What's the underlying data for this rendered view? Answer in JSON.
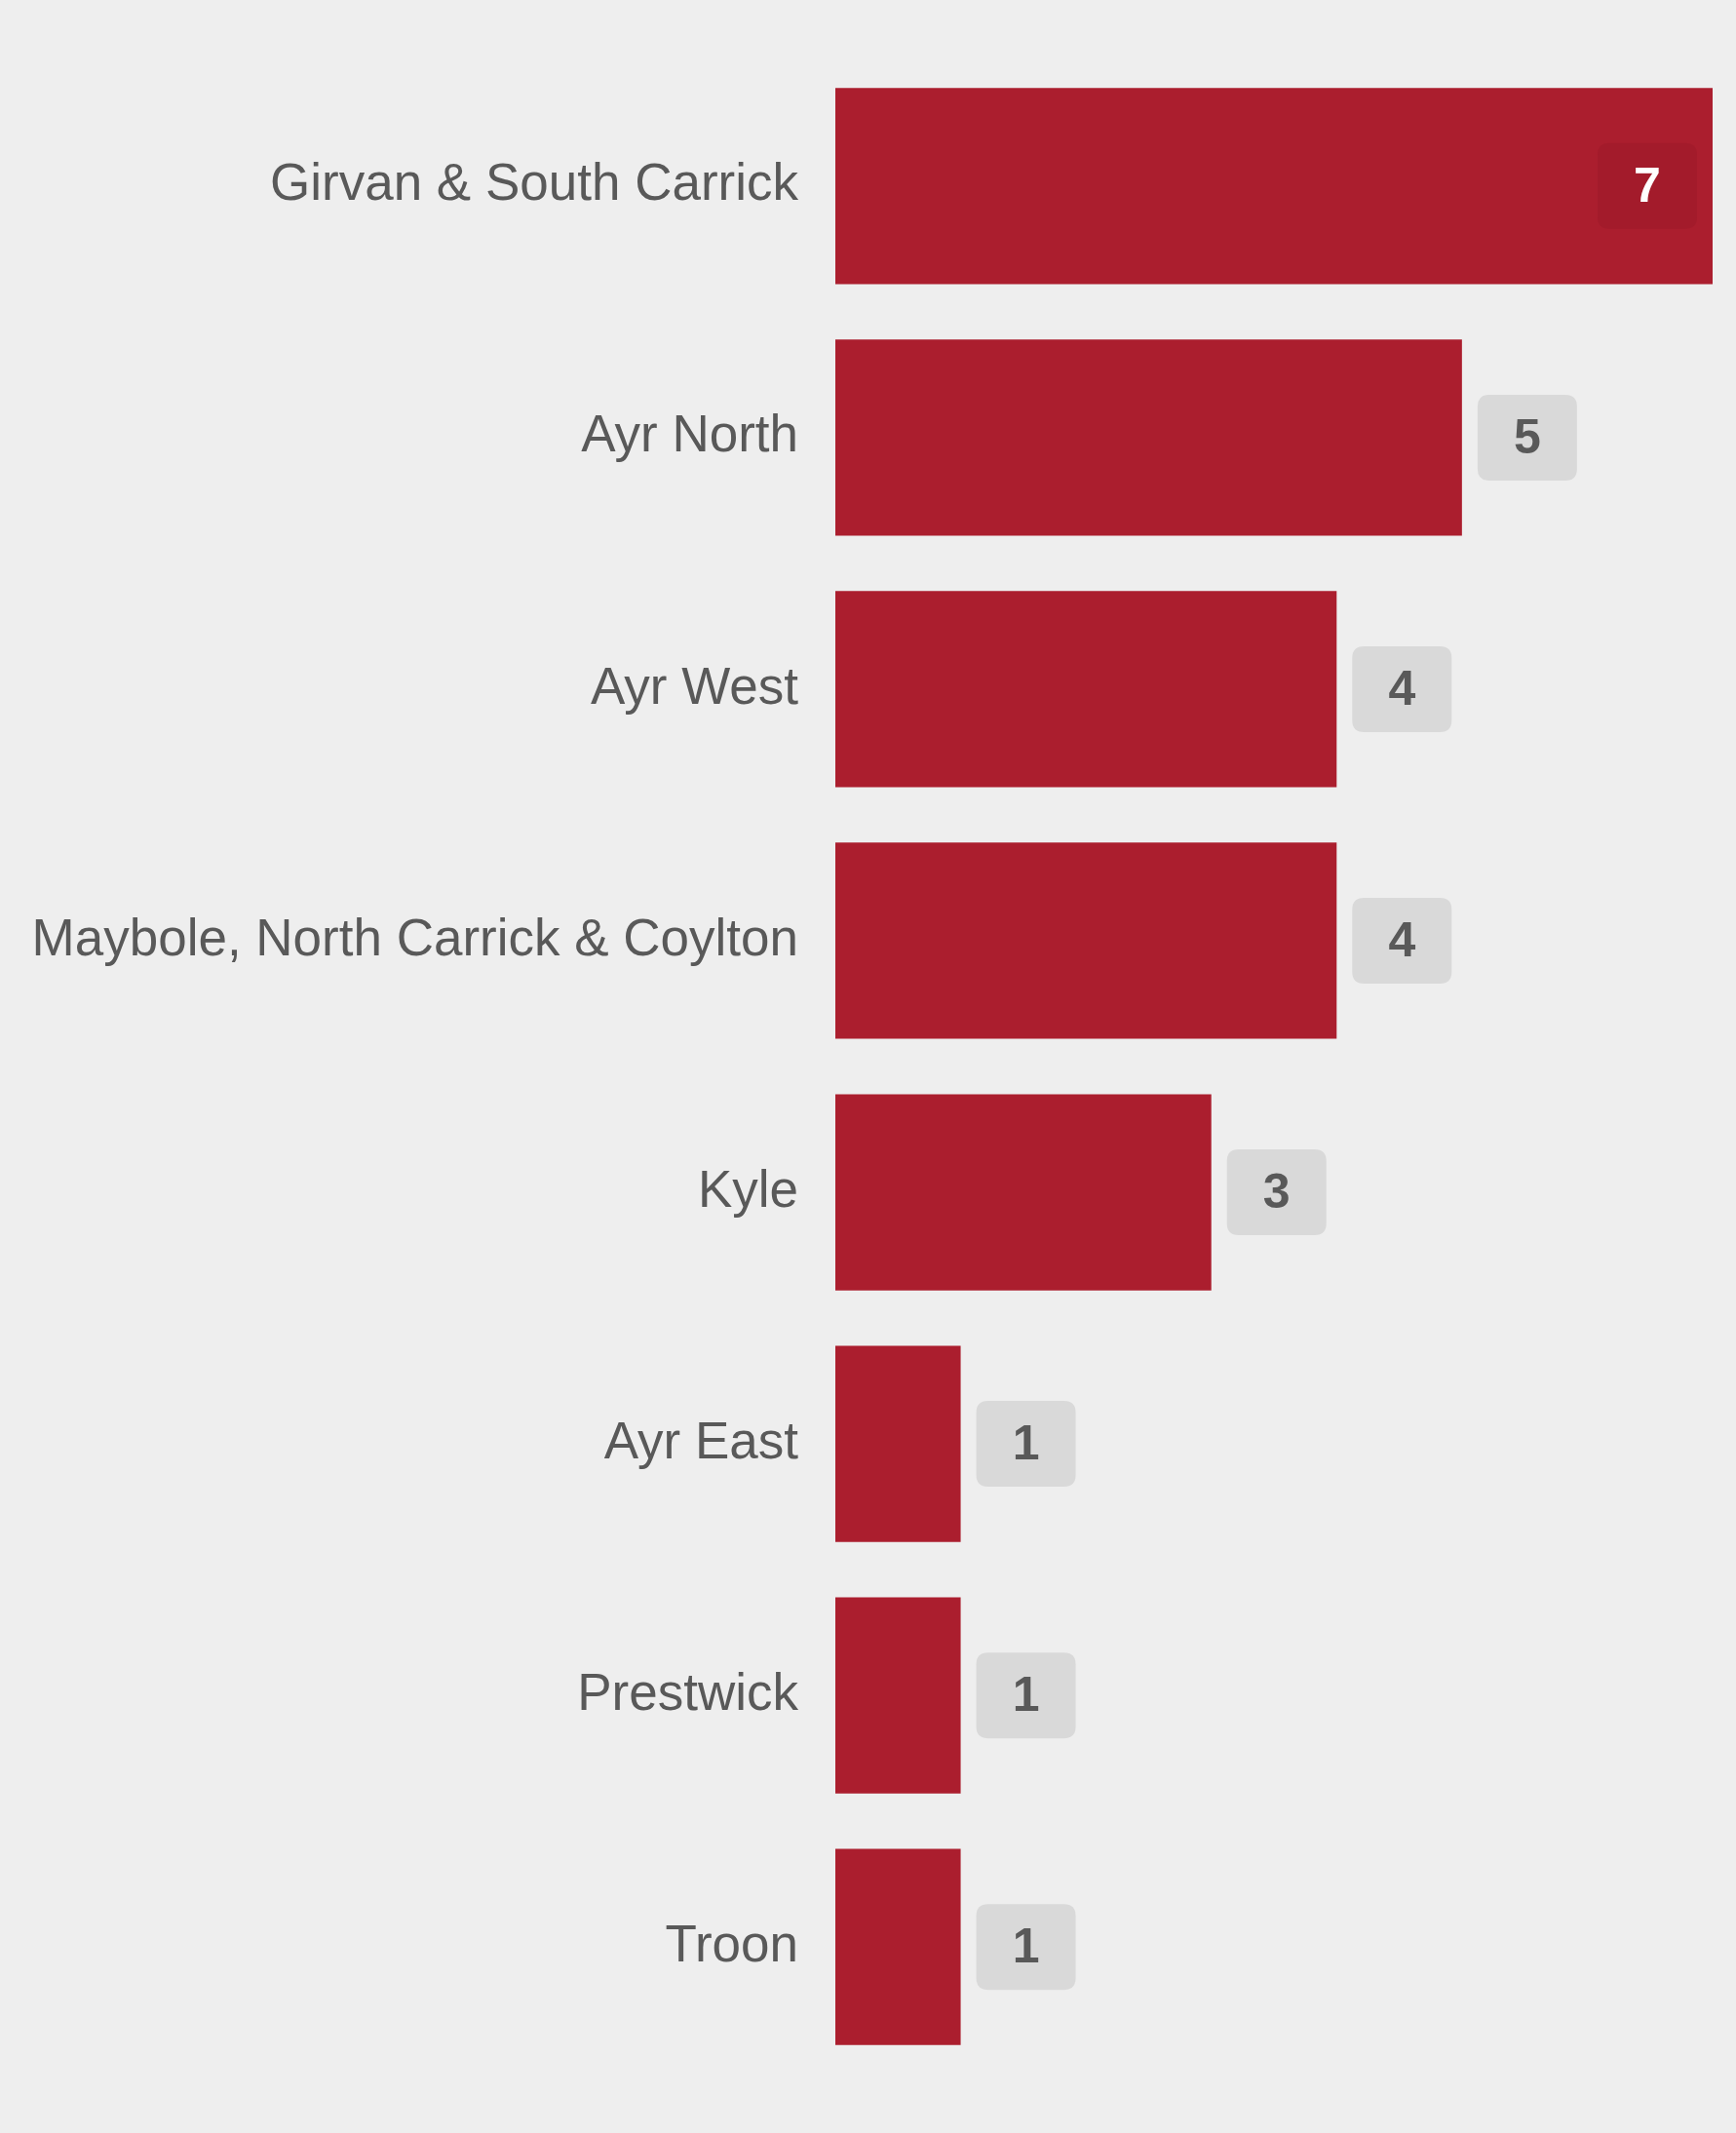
{
  "chart_data": {
    "type": "bar",
    "orientation": "horizontal",
    "categories": [
      "Girvan & South Carrick",
      "Ayr North",
      "Ayr West",
      "Maybole, North Carrick & Coylton",
      "Kyle",
      "Ayr East",
      "Prestwick",
      "Troon"
    ],
    "values": [
      7,
      5,
      4,
      4,
      3,
      1,
      1,
      1
    ],
    "color": "#ab1e2e",
    "xlim": [
      0,
      7
    ],
    "tick_labels": "y",
    "legend": false,
    "data_labels": true
  }
}
